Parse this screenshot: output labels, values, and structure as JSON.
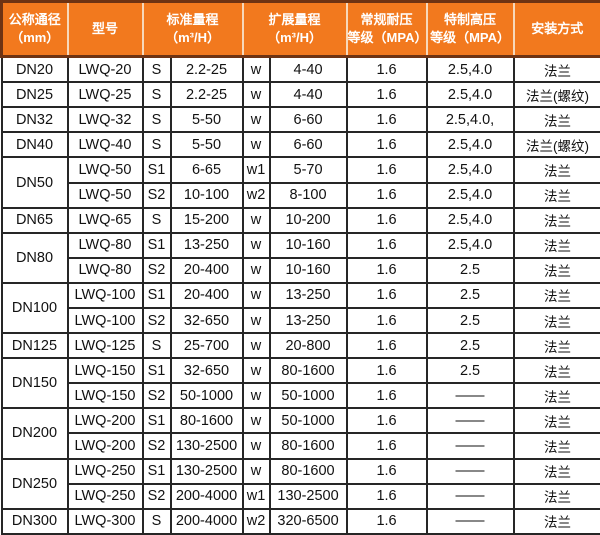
{
  "table_name": "turbine-flowmeter-spec-table",
  "colors": {
    "header_bg": "#F2791E",
    "header_text": "#FFFFFF",
    "header_border_dark": "#6E3313",
    "header_separator": "#F7D8BA",
    "grid": "#262626",
    "body_bg": "#FFFFFF",
    "body_text": "#111111"
  },
  "header": {
    "col_dn": "公称通径\n（mm）",
    "col_model": "型号",
    "col_std": "标准量程\n（m³/H）",
    "col_ext": "扩展量程\n（m³/H）",
    "col_pn": "常规耐压\n等级（MPA）",
    "col_hp": "特制高压\n等级（MPA）",
    "col_install": "安装方式"
  },
  "rows": [
    {
      "dn": "DN20",
      "span": 1,
      "model": "LWQ-20",
      "s": "S",
      "std": "2.2-25",
      "w": "w",
      "ext": "4-40",
      "pn": "1.6",
      "hp": "2.5,4.0",
      "install": "法兰"
    },
    {
      "dn": "DN25",
      "span": 1,
      "model": "LWQ-25",
      "s": "S",
      "std": "2.2-25",
      "w": "w",
      "ext": "4-40",
      "pn": "1.6",
      "hp": "2.5,4.0",
      "install": "法兰(螺纹)"
    },
    {
      "dn": "DN32",
      "span": 1,
      "model": "LWQ-32",
      "s": "S",
      "std": "5-50",
      "w": "w",
      "ext": "6-60",
      "pn": "1.6",
      "hp": "2.5,4.0,",
      "install": "法兰"
    },
    {
      "dn": "DN40",
      "span": 1,
      "model": "LWQ-40",
      "s": "S",
      "std": "5-50",
      "w": "w",
      "ext": "6-60",
      "pn": "1.6",
      "hp": "2.5,4.0",
      "install": "法兰(螺纹)"
    },
    {
      "dn": "DN50",
      "span": 2,
      "model": "LWQ-50",
      "s": "S1",
      "std": "6-65",
      "w": "w1",
      "ext": "5-70",
      "pn": "1.6",
      "hp": "2.5,4.0",
      "install": "法兰"
    },
    {
      "dn": null,
      "model": "LWQ-50",
      "s": "S2",
      "std": "10-100",
      "w": "w2",
      "ext": "8-100",
      "pn": "1.6",
      "hp": "2.5,4.0",
      "install": "法兰"
    },
    {
      "dn": "DN65",
      "span": 1,
      "model": "LWQ-65",
      "s": "S",
      "std": "15-200",
      "w": "w",
      "ext": "10-200",
      "pn": "1.6",
      "hp": "2.5,4.0",
      "install": "法兰"
    },
    {
      "dn": "DN80",
      "span": 2,
      "model": "LWQ-80",
      "s": "S1",
      "std": "13-250",
      "w": "w",
      "ext": "10-160",
      "pn": "1.6",
      "hp": "2.5,4.0",
      "install": "法兰"
    },
    {
      "dn": null,
      "model": "LWQ-80",
      "s": "S2",
      "std": "20-400",
      "w": "w",
      "ext": "10-160",
      "pn": "1.6",
      "hp": "2.5",
      "install": "法兰"
    },
    {
      "dn": "DN100",
      "span": 2,
      "model": "LWQ-100",
      "s": "S1",
      "std": "20-400",
      "w": "w",
      "ext": "13-250",
      "pn": "1.6",
      "hp": "2.5",
      "install": "法兰"
    },
    {
      "dn": null,
      "model": "LWQ-100",
      "s": "S2",
      "std": "32-650",
      "w": "w",
      "ext": "13-250",
      "pn": "1.6",
      "hp": "2.5",
      "install": "法兰"
    },
    {
      "dn": "DN125",
      "span": 1,
      "model": "LWQ-125",
      "s": "S",
      "std": "25-700",
      "w": "w",
      "ext": "20-800",
      "pn": "1.6",
      "hp": "2.5",
      "install": "法兰"
    },
    {
      "dn": "DN150",
      "span": 2,
      "model": "LWQ-150",
      "s": "S1",
      "std": "32-650",
      "w": "w",
      "ext": "80-1600",
      "pn": "1.6",
      "hp": "2.5",
      "install": "法兰"
    },
    {
      "dn": null,
      "model": "LWQ-150",
      "s": "S2",
      "std": "50-1000",
      "w": "w",
      "ext": "50-1000",
      "pn": "1.6",
      "hp": "——",
      "install": "法兰"
    },
    {
      "dn": "DN200",
      "span": 2,
      "model": "LWQ-200",
      "s": "S1",
      "std": "80-1600",
      "w": "w",
      "ext": "50-1000",
      "pn": "1.6",
      "hp": "——",
      "install": "法兰"
    },
    {
      "dn": null,
      "model": "LWQ-200",
      "s": "S2",
      "std": "130-2500",
      "w": "w",
      "ext": "80-1600",
      "pn": "1.6",
      "hp": "——",
      "install": "法兰"
    },
    {
      "dn": "DN250",
      "span": 2,
      "model": "LWQ-250",
      "s": "S1",
      "std": "130-2500",
      "w": "w",
      "ext": "80-1600",
      "pn": "1.6",
      "hp": "——",
      "install": "法兰"
    },
    {
      "dn": null,
      "model": "LWQ-250",
      "s": "S2",
      "std": "200-4000",
      "w": "w1",
      "ext": "130-2500",
      "pn": "1.6",
      "hp": "——",
      "install": "法兰"
    },
    {
      "dn": "DN300",
      "span": 1,
      "model": "LWQ-300",
      "s": "S",
      "std": "200-4000",
      "w": "w2",
      "ext": "320-6500",
      "pn": "1.6",
      "hp": "——",
      "install": "法兰"
    }
  ]
}
